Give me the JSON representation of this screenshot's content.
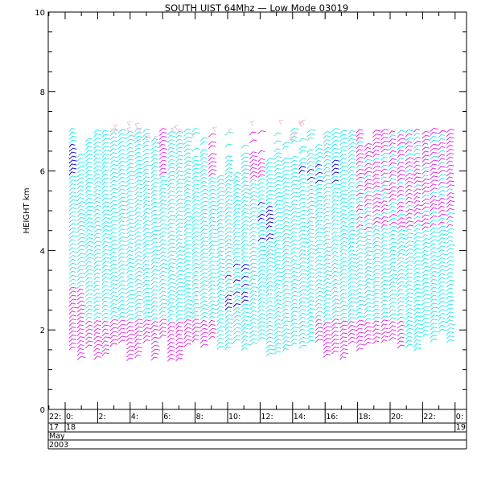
{
  "chart_data": {
    "type": "wind-barb time-height plot",
    "title": "SOUTH UIST 64Mhz — Low Mode 03019",
    "ylabel": "HEIGHT km",
    "ylim": [
      0,
      10
    ],
    "y_ticks": [
      "0",
      "2",
      "4",
      "6",
      "8",
      "10"
    ],
    "x_ticks": [
      "22:",
      "0:",
      "2:",
      "4:",
      "6:",
      "8:",
      "10:",
      "12:",
      "14:",
      "16:",
      "18:",
      "20:",
      "22:",
      "0:"
    ],
    "x_hours": [
      -2,
      0,
      2,
      4,
      6,
      8,
      10,
      12,
      14,
      16,
      18,
      20,
      22,
      24
    ],
    "x_day_labels": [
      "17",
      "18",
      "19"
    ],
    "x_month_label": "May",
    "x_year_label": "2003",
    "data_extent_km": [
      1.2,
      7.0
    ],
    "series_colors": {
      "cyan": "#22e8e8",
      "magenta": "#e020e0",
      "blue": "#0000cc",
      "pink": "#f0b0c8"
    }
  }
}
